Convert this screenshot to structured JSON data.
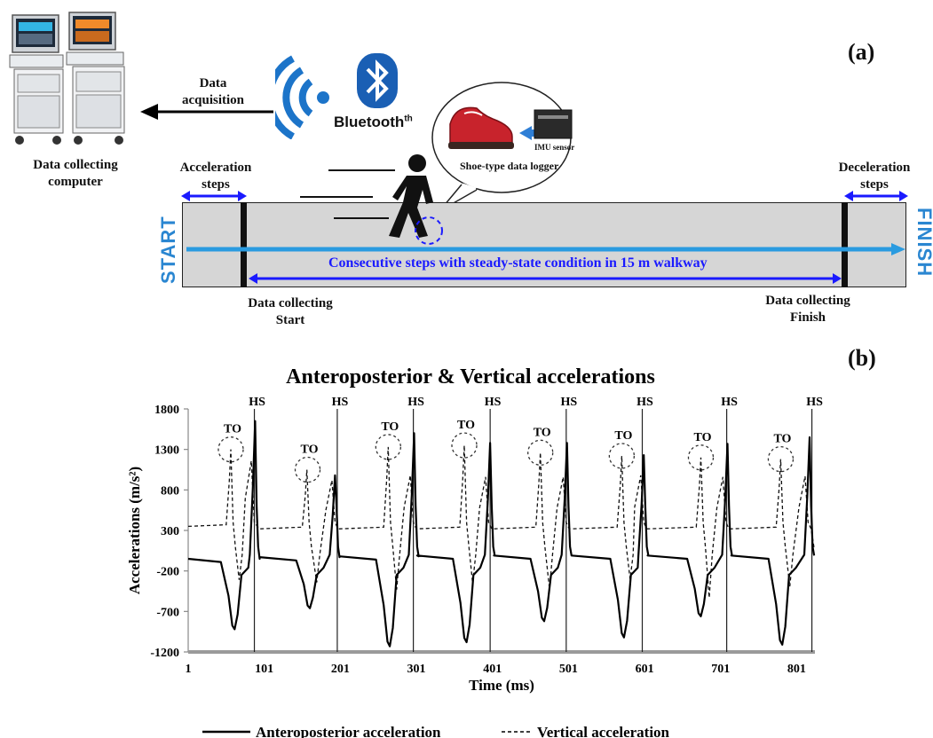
{
  "panel_a": {
    "label": "(a)",
    "computer_label": "Data collecting computer",
    "data_acquisition": "Data acquisition",
    "bluetooth": "Bluetooth",
    "bluetooth_sup": "th",
    "imu_sensor": "IMU sensor",
    "shoe_logger": "Shoe-type data logger",
    "acceleration_steps": "Acceleration steps",
    "deceleration_steps": "Deceleration steps",
    "start": "START",
    "finish": "FINISH",
    "consecutive": "Consecutive steps with steady-state condition in 15 m walkway",
    "collect_start": "Data collecting Start",
    "collect_finish": "Data collecting Finish",
    "colors": {
      "arrow_blue": "#1a1aff",
      "walk_arrow": "#2a9be0",
      "walk_bg": "#d6d6d6",
      "start_text": "#2a86d1"
    },
    "icons": [
      "computer-icon",
      "wifi-icon",
      "bluetooth-icon",
      "walker-icon",
      "shoe-icon",
      "imu-sensor-icon"
    ]
  },
  "panel_b": {
    "label": "(b)"
  },
  "chart_data": {
    "type": "line",
    "title": "Anteroposterior & Vertical accelerations",
    "xlabel": "Time (ms)",
    "ylabel": "Accelerations (m/s²)",
    "xlim": [
      1,
      825
    ],
    "ylim": [
      -1200,
      1800
    ],
    "xticks": [
      "1",
      "101",
      "201",
      "301",
      "401",
      "501",
      "601",
      "701",
      "801"
    ],
    "yticks": [
      "1800",
      "1300",
      "800",
      "300",
      "-200",
      "-700",
      "-1200"
    ],
    "legend_position": "bottom",
    "heel_strike_label": "HS",
    "toe_off_label": "TO",
    "heel_strikes": [
      88,
      197,
      297,
      398,
      498,
      598,
      709,
      821
    ],
    "toe_offs": [
      {
        "x": 57,
        "y": 1300
      },
      {
        "x": 158,
        "y": 1050
      },
      {
        "x": 264,
        "y": 1330
      },
      {
        "x": 364,
        "y": 1350
      },
      {
        "x": 464,
        "y": 1260
      },
      {
        "x": 571,
        "y": 1220
      },
      {
        "x": 675,
        "y": 1200
      },
      {
        "x": 780,
        "y": 1180
      }
    ],
    "series": [
      {
        "name": "Anteroposterior acceleration",
        "style": "solid",
        "cycles": [
          {
            "start": 1,
            "baseline": -50,
            "min_x": 62,
            "min_y": -920,
            "peak_x": 89,
            "peak_y": 1650
          },
          {
            "start": 95,
            "baseline": -30,
            "min_x": 161,
            "min_y": -660,
            "peak_x": 194,
            "peak_y": 980
          },
          {
            "start": 200,
            "baseline": -20,
            "min_x": 266,
            "min_y": -1130,
            "peak_x": 298,
            "peak_y": 1500
          },
          {
            "start": 302,
            "baseline": -10,
            "min_x": 367,
            "min_y": -1080,
            "peak_x": 398,
            "peak_y": 1380
          },
          {
            "start": 403,
            "baseline": -10,
            "min_x": 469,
            "min_y": -820,
            "peak_x": 499,
            "peak_y": 1380
          },
          {
            "start": 505,
            "baseline": -10,
            "min_x": 574,
            "min_y": -1020,
            "peak_x": 600,
            "peak_y": 1230
          },
          {
            "start": 605,
            "baseline": -10,
            "min_x": 675,
            "min_y": -760,
            "peak_x": 710,
            "peak_y": 1370
          },
          {
            "start": 715,
            "baseline": -10,
            "min_x": 782,
            "min_y": -1110,
            "peak_x": 818,
            "peak_y": 1450
          }
        ]
      },
      {
        "name": "Vertical acceleration",
        "style": "dashed",
        "cycles": [
          {
            "start": 1,
            "baseline": 350,
            "to_x": 57,
            "to_y": 1300,
            "min_x": 68,
            "min_y": -310,
            "peak_x": 84,
            "peak_y": 1160
          },
          {
            "start": 95,
            "baseline": 320,
            "to_x": 157,
            "to_y": 1050,
            "min_x": 170,
            "min_y": -340,
            "peak_x": 190,
            "peak_y": 920
          },
          {
            "start": 200,
            "baseline": 320,
            "to_x": 264,
            "to_y": 1330,
            "min_x": 275,
            "min_y": -430,
            "peak_x": 293,
            "peak_y": 980
          },
          {
            "start": 302,
            "baseline": 320,
            "to_x": 364,
            "to_y": 1350,
            "min_x": 375,
            "min_y": -350,
            "peak_x": 392,
            "peak_y": 960
          },
          {
            "start": 403,
            "baseline": 320,
            "to_x": 464,
            "to_y": 1260,
            "min_x": 476,
            "min_y": -420,
            "peak_x": 494,
            "peak_y": 960
          },
          {
            "start": 505,
            "baseline": 320,
            "to_x": 571,
            "to_y": 1220,
            "min_x": 582,
            "min_y": -300,
            "peak_x": 596,
            "peak_y": 980
          },
          {
            "start": 605,
            "baseline": 320,
            "to_x": 675,
            "to_y": 1200,
            "min_x": 686,
            "min_y": -530,
            "peak_x": 704,
            "peak_y": 960
          },
          {
            "start": 715,
            "baseline": 320,
            "to_x": 780,
            "to_y": 1180,
            "min_x": 792,
            "min_y": -390,
            "peak_x": 812,
            "peak_y": 970
          }
        ]
      }
    ]
  }
}
